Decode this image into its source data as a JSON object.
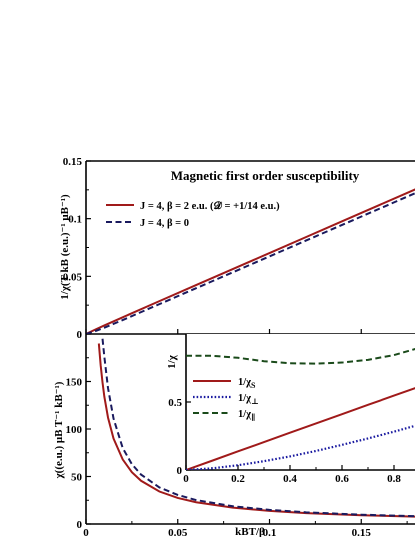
{
  "chart_data": [
    {
      "type": "line",
      "title": "Magnetic first order susceptibility",
      "xlabel": "",
      "ylabel": "1/χ(T kB (e.u.)⁻¹ μB⁻¹)",
      "xlim": [
        0,
        0.2
      ],
      "ylim": [
        0,
        0.15
      ],
      "yticks": [
        "0",
        "0.05",
        "0.1",
        "0.15"
      ],
      "legend_position": "top-left",
      "series": [
        {
          "name": "J = 4,  β = 2 e.u.  (𝒟 = +1/14 e.u.)",
          "color": "#a01a1a",
          "style": "solid",
          "x": [
            0,
            0.005,
            0.01,
            0.02,
            0.04,
            0.06,
            0.08,
            0.1,
            0.12,
            0.14,
            0.16,
            0.18,
            0.2
          ],
          "y": [
            0,
            0.0038,
            0.0074,
            0.0145,
            0.0285,
            0.0424,
            0.0563,
            0.0702,
            0.0841,
            0.098,
            0.1119,
            0.1258,
            0.1397
          ]
        },
        {
          "name": "J = 4,  β = 0",
          "color": "#1a1a5e",
          "style": "dashed",
          "x": [
            0,
            0.005,
            0.01,
            0.02,
            0.04,
            0.06,
            0.08,
            0.1,
            0.12,
            0.14,
            0.16,
            0.18,
            0.2
          ],
          "y": [
            0,
            0.0025,
            0.0055,
            0.0121,
            0.0259,
            0.0397,
            0.0535,
            0.0673,
            0.0811,
            0.0949,
            0.1087,
            0.1225,
            0.1363
          ]
        }
      ]
    },
    {
      "type": "line",
      "xlabel": "kBT/β",
      "ylabel": "χ((e.u.) μB T⁻¹ kB⁻¹)",
      "xlim": [
        0,
        0.2
      ],
      "ylim": [
        0,
        200
      ],
      "xticks": [
        "0",
        "0.05",
        "0.1",
        "0.15"
      ],
      "yticks": [
        "0",
        "50",
        "100",
        "150"
      ],
      "series": [
        {
          "name": "J = 4,  β = 2 e.u.",
          "color": "#a01a1a",
          "style": "solid",
          "x": [
            0.007,
            0.008,
            0.009,
            0.01,
            0.012,
            0.015,
            0.02,
            0.025,
            0.03,
            0.04,
            0.05,
            0.06,
            0.08,
            0.1,
            0.12,
            0.15,
            0.18,
            0.2
          ],
          "y": [
            190,
            167,
            149,
            134,
            112,
            90,
            68,
            54.5,
            45.5,
            34.2,
            27.4,
            22.9,
            17.2,
            13.8,
            11.5,
            9.2,
            7.7,
            7.0
          ]
        },
        {
          "name": "J = 4,  β = 0",
          "color": "#1a1a5e",
          "style": "dashed",
          "x": [
            0.009,
            0.01,
            0.012,
            0.015,
            0.02,
            0.025,
            0.03,
            0.04,
            0.05,
            0.06,
            0.08,
            0.1,
            0.12,
            0.15,
            0.18,
            0.2
          ],
          "y": [
            195,
            176,
            143,
            111,
            80,
            63,
            52,
            38.5,
            30.6,
            25.2,
            18.7,
            14.9,
            12.3,
            9.8,
            8.2,
            7.4
          ]
        }
      ]
    },
    {
      "type": "line",
      "xlabel": "",
      "ylabel": "1/χ",
      "xlim": [
        0,
        1
      ],
      "ylim": [
        0,
        1
      ],
      "xticks": [
        "0",
        "0.2",
        "0.4",
        "0.6",
        "0.8"
      ],
      "yticks": [
        "0",
        "0.5"
      ],
      "legend_position": "left",
      "series": [
        {
          "name": "1/χS",
          "label_main": "1/χ",
          "label_sub": "S",
          "color": "#a01a1a",
          "style": "solid",
          "x": [
            0,
            0.1,
            0.2,
            0.3,
            0.4,
            0.5,
            0.6,
            0.7,
            0.8,
            0.9,
            1.0
          ],
          "y": [
            0,
            0.068,
            0.137,
            0.205,
            0.274,
            0.342,
            0.41,
            0.479,
            0.547,
            0.615,
            0.684
          ]
        },
        {
          "name": "1/χ⊥",
          "label_main": "1/χ",
          "label_sub": "⊥",
          "color": "#1a1aa0",
          "style": "dotted",
          "x": [
            0,
            0.1,
            0.2,
            0.3,
            0.4,
            0.5,
            0.6,
            0.7,
            0.8,
            0.9,
            1.0
          ],
          "y": [
            0,
            0.012,
            0.035,
            0.065,
            0.1,
            0.14,
            0.185,
            0.232,
            0.282,
            0.335,
            0.39
          ]
        },
        {
          "name": "1/χ∥",
          "label_main": "1/χ",
          "label_sub": "∥",
          "color": "#1a4a1a",
          "style": "dashed",
          "x": [
            0,
            0.1,
            0.2,
            0.3,
            0.4,
            0.5,
            0.6,
            0.7,
            0.8,
            0.9,
            1.0
          ],
          "y": [
            0.84,
            0.84,
            0.825,
            0.8,
            0.785,
            0.782,
            0.79,
            0.81,
            0.845,
            0.9,
            0.97
          ]
        }
      ]
    }
  ]
}
